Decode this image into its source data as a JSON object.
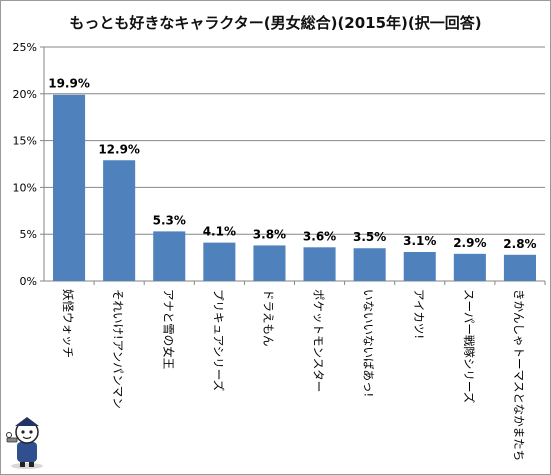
{
  "chart_data": {
    "type": "bar",
    "title": "もっとも好きなキャラクター(男女総合)(2015年)(択一回答)",
    "categories": [
      "妖怪ウォッチ",
      "それいけ!アンパンマン",
      "アナと雪の女王",
      "プリキュアシリーズ",
      "ドラえもん",
      "ポケットモンスター",
      "いないいないばあっ!",
      "アイカツ!",
      "スーパー戦隊シリーズ",
      "きかんしゃトーマスとなかまたち"
    ],
    "values": [
      19.9,
      12.9,
      5.3,
      4.1,
      3.8,
      3.6,
      3.5,
      3.1,
      2.9,
      2.8
    ],
    "data_labels": [
      "19.9%",
      "12.9%",
      "5.3%",
      "4.1%",
      "3.8%",
      "3.6%",
      "3.5%",
      "3.1%",
      "2.9%",
      "2.8%"
    ],
    "ylim": [
      0,
      25
    ],
    "yticks": [
      0,
      5,
      10,
      15,
      20,
      25
    ],
    "ytick_labels": [
      "0%",
      "5%",
      "10%",
      "15%",
      "20%",
      "25%"
    ],
    "xlabel": "",
    "ylabel": "",
    "grid": true,
    "legend": "none",
    "colors": {
      "bar": "#4f81bd",
      "grid": "#868686",
      "axis": "#868686",
      "text": "#000000"
    }
  }
}
